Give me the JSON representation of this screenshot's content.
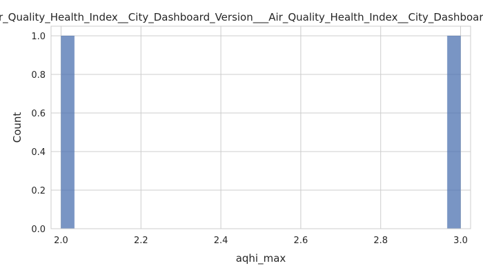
{
  "chart_data": {
    "type": "bar",
    "title": "Air_Quality_Health_Index__City_Dashboard_Version___Air_Quality_Health_Index__City_Dashboard_Version",
    "xlabel": "aqhi_max",
    "ylabel": "Count",
    "xlim": [
      1.975,
      3.025
    ],
    "ylim": [
      0,
      1.05
    ],
    "xticks": [
      "2.0",
      "2.2",
      "2.4",
      "2.6",
      "2.8",
      "3.0"
    ],
    "yticks": [
      "0.0",
      "0.2",
      "0.4",
      "0.6",
      "0.8",
      "1.0"
    ],
    "bins": [
      {
        "x_start": 2.0,
        "x_end": 2.0333,
        "count": 1
      },
      {
        "x_start": 2.9667,
        "x_end": 3.0,
        "count": 1
      }
    ],
    "grid": true,
    "colors": {
      "bar": "#4c72b0",
      "grid": "#cccccc"
    }
  }
}
